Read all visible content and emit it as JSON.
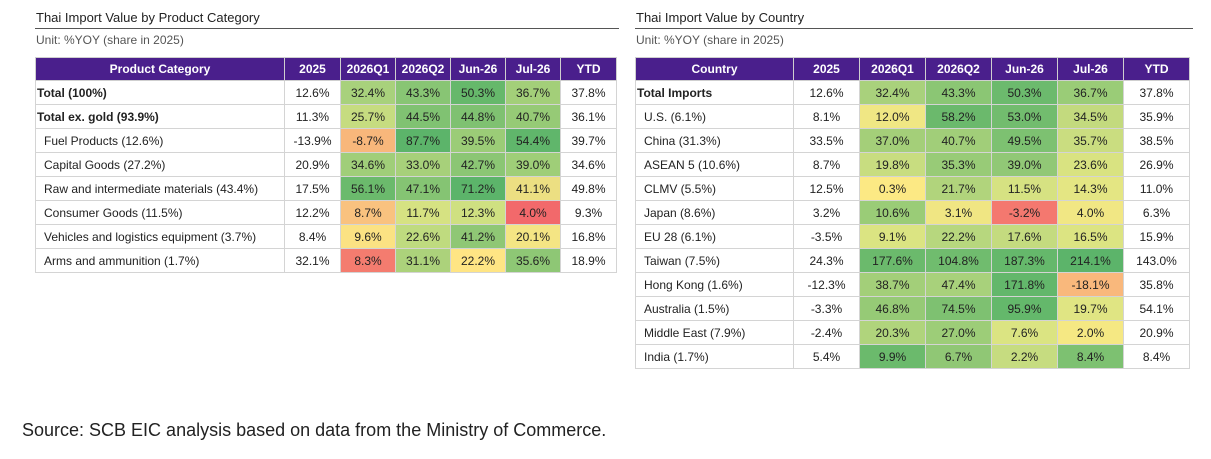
{
  "left": {
    "title": "Thai Import Value  by  Product Category",
    "unit": "Unit: %YOY (share in 2025)",
    "headers": [
      "Product Category",
      "2025",
      "2026Q1",
      "2026Q2",
      "Jun-26",
      "Jul-26",
      "YTD"
    ],
    "rows": [
      {
        "label": "Total (100%)",
        "bold": true,
        "values": [
          "12.6%",
          "32.4%",
          "43.3%",
          "50.3%",
          "36.7%",
          "37.8%"
        ],
        "colors": [
          "",
          "#a8d17c",
          "#88c574",
          "#66b86b",
          "#a3cf79",
          ""
        ]
      },
      {
        "label": "Total ex. gold (93.9%)",
        "bold": true,
        "values": [
          "11.3%",
          "25.7%",
          "44.5%",
          "44.8%",
          "40.7%",
          "36.1%"
        ],
        "colors": [
          "",
          "#c6dc80",
          "#80c272",
          "#7fc171",
          "#96ca76",
          ""
        ]
      },
      {
        "label": "Fuel Products (12.6%)",
        "bold": false,
        "values": [
          "-13.9%",
          "-8.7%",
          "87.7%",
          "39.5%",
          "54.4%",
          "39.7%"
        ],
        "colors": [
          "",
          "#f8b77b",
          "#5cb46a",
          "#9bcc77",
          "#60b66b",
          ""
        ]
      },
      {
        "label": "Capital Goods (27.2%)",
        "bold": false,
        "values": [
          "20.9%",
          "34.6%",
          "33.0%",
          "42.7%",
          "39.0%",
          "34.6%"
        ],
        "colors": [
          "",
          "#a0ce79",
          "#a7d07a",
          "#8bc674",
          "#9fce78",
          ""
        ]
      },
      {
        "label": "Raw and intermediate materials (43.4%)",
        "bold": false,
        "values": [
          "17.5%",
          "56.1%",
          "47.1%",
          "71.2%",
          "41.1%",
          "49.8%"
        ],
        "colors": [
          "",
          "#6bba6c",
          "#85c473",
          "#5cb46a",
          "#ecdf82",
          ""
        ]
      },
      {
        "label": "Consumer Goods (11.5%)",
        "bold": false,
        "values": [
          "12.2%",
          "8.7%",
          "11.7%",
          "12.3%",
          "4.0%",
          "9.3%"
        ],
        "colors": [
          "",
          "#f9c27f",
          "#d6e282",
          "#cfe081",
          "#f2696b",
          ""
        ]
      },
      {
        "label": "Vehicles and logistics equipment (3.7%)",
        "bold": false,
        "values": [
          "8.4%",
          "9.6%",
          "22.6%",
          "41.2%",
          "20.1%",
          "16.8%"
        ],
        "colors": [
          "",
          "#fbe283",
          "#bfdb7f",
          "#8fc775",
          "#f4e584",
          ""
        ]
      },
      {
        "label": "Arms and ammunition (1.7%)",
        "bold": false,
        "values": [
          "32.1%",
          "8.3%",
          "31.1%",
          "22.2%",
          "35.6%",
          "18.9%"
        ],
        "colors": [
          "",
          "#f47c6f",
          "#acd27b",
          "#ffe584",
          "#8ec775",
          ""
        ]
      }
    ]
  },
  "right": {
    "title": "Thai Import Value  by  Country",
    "unit": "Unit: %YOY (share in 2025)",
    "headers": [
      "Country",
      "2025",
      "2026Q1",
      "2026Q2",
      "Jun-26",
      "Jul-26",
      "YTD"
    ],
    "rows": [
      {
        "label": "Total Imports",
        "bold": true,
        "values": [
          "12.6%",
          "32.4%",
          "43.3%",
          "50.3%",
          "36.7%",
          "37.8%"
        ],
        "colors": [
          "",
          "#a9d17c",
          "#8bc674",
          "#6cba6d",
          "#9acc77",
          ""
        ]
      },
      {
        "label": "U.S. (6.1%)",
        "bold": false,
        "values": [
          "8.1%",
          "12.0%",
          "58.2%",
          "53.0%",
          "34.5%",
          "35.9%"
        ],
        "colors": [
          "",
          "#f0e784",
          "#6bb96c",
          "#72bc6e",
          "#c3da7e",
          ""
        ]
      },
      {
        "label": "China (31.3%)",
        "bold": false,
        "values": [
          "33.5%",
          "37.0%",
          "40.7%",
          "49.5%",
          "35.7%",
          "38.5%"
        ],
        "colors": [
          "",
          "#a4cf79",
          "#a1ce79",
          "#7dc171",
          "#cadd80",
          ""
        ]
      },
      {
        "label": "ASEAN  5 (10.6%)",
        "bold": false,
        "values": [
          "8.7%",
          "19.8%",
          "35.3%",
          "39.0%",
          "23.6%",
          "26.9%"
        ],
        "colors": [
          "",
          "#c8dd80",
          "#98cb77",
          "#91c876",
          "#d9e381",
          ""
        ]
      },
      {
        "label": "CLMV (5.5%)",
        "bold": false,
        "values": [
          "12.5%",
          "0.3%",
          "21.7%",
          "11.5%",
          "14.3%",
          "11.0%"
        ],
        "colors": [
          "",
          "#fce984",
          "#b1d47c",
          "#d6e282",
          "#e4e683",
          ""
        ]
      },
      {
        "label": "Japan (8.6%)",
        "bold": false,
        "values": [
          "3.2%",
          "10.6%",
          "3.1%",
          "-3.2%",
          "4.0%",
          "6.3%"
        ],
        "colors": [
          "",
          "#9acc77",
          "#f0e683",
          "#f4786f",
          "#f1e784",
          ""
        ]
      },
      {
        "label": "EU 28 (6.1%)",
        "bold": false,
        "values": [
          "-3.5%",
          "9.1%",
          "22.2%",
          "17.6%",
          "16.5%",
          "15.9%"
        ],
        "colors": [
          "",
          "#dbe482",
          "#b7d77e",
          "#c4db7f",
          "#dce482",
          ""
        ]
      },
      {
        "label": "Taiwan (7.5%)",
        "bold": false,
        "values": [
          "24.3%",
          "177.6%",
          "104.8%",
          "187.3%",
          "214.1%",
          "143.0%"
        ],
        "colors": [
          "",
          "#6bba6c",
          "#70bc6e",
          "#65b86b",
          "#5cb46a",
          ""
        ]
      },
      {
        "label": "Hong Kong (1.6%)",
        "bold": false,
        "values": [
          "-12.3%",
          "38.7%",
          "47.4%",
          "171.8%",
          "-18.1%",
          "35.8%"
        ],
        "colors": [
          "",
          "#a3cf79",
          "#a8d17b",
          "#63b76b",
          "#f9b87c",
          ""
        ]
      },
      {
        "label": "Australia (1.5%)",
        "bold": false,
        "values": [
          "-3.3%",
          "46.8%",
          "74.5%",
          "95.9%",
          "19.7%",
          "54.1%"
        ],
        "colors": [
          "",
          "#96ca76",
          "#7ec171",
          "#64b86b",
          "#e0e583",
          ""
        ]
      },
      {
        "label": "Middle  East (7.9%)",
        "bold": false,
        "values": [
          "-2.4%",
          "20.3%",
          "27.0%",
          "7.6%",
          "2.0%",
          "20.9%"
        ],
        "colors": [
          "",
          "#b0d47c",
          "#9dcd78",
          "#dbe482",
          "#f5e883",
          ""
        ]
      },
      {
        "label": "India (1.7%)",
        "bold": false,
        "values": [
          "5.4%",
          "9.9%",
          "6.7%",
          "2.2%",
          "8.4%",
          "8.4%"
        ],
        "colors": [
          "",
          "#6bba6c",
          "#90c775",
          "#c6dc80",
          "#7dc171",
          ""
        ]
      }
    ]
  },
  "source": "Source: SCB EIC analysis based on data from the Ministry of Commerce."
}
